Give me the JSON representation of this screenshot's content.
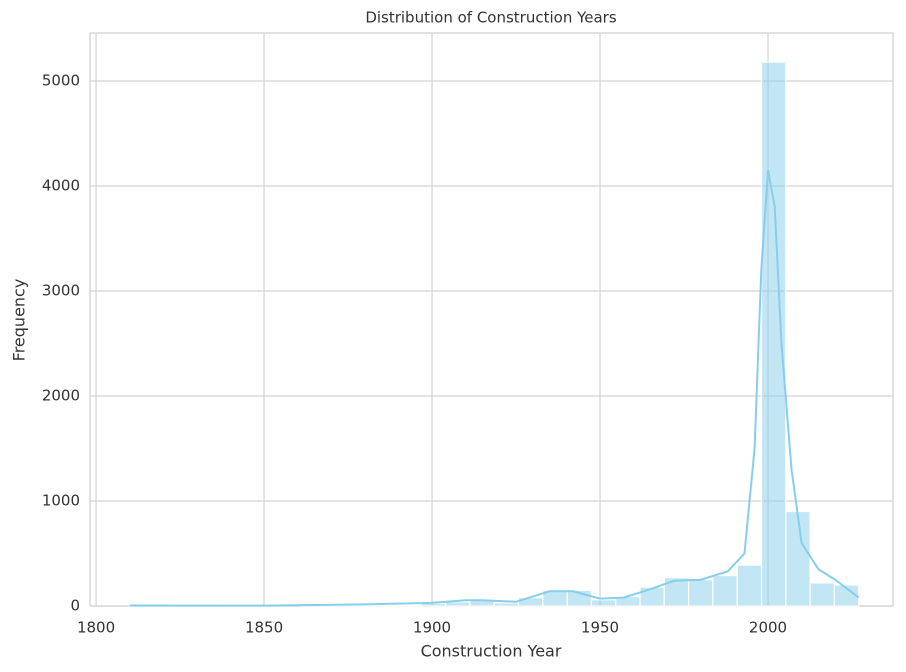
{
  "chart_data": {
    "type": "histogram",
    "title": "Distribution of Construction Years",
    "x_label": "Construction Year",
    "y_label": "Frequency",
    "bins": [
      1810,
      1817.23,
      1824.47,
      1831.7,
      1838.93,
      1846.17,
      1853.4,
      1860.63,
      1867.87,
      1875.1,
      1882.33,
      1889.57,
      1896.8,
      1904.03,
      1911.27,
      1918.5,
      1925.73,
      1932.97,
      1940.2,
      1947.43,
      1954.67,
      1961.9,
      1969.13,
      1976.37,
      1983.6,
      1990.83,
      1998.07,
      2005.3,
      2012.53,
      2019.77,
      2027
    ],
    "values": [
      3,
      0,
      0,
      0,
      0,
      2,
      0,
      2,
      5,
      10,
      8,
      10,
      25,
      40,
      55,
      30,
      80,
      150,
      150,
      60,
      90,
      180,
      270,
      250,
      290,
      390,
      5180,
      900,
      220,
      200
    ],
    "color": "#87ceeb",
    "kde": {
      "x": [
        1810,
        1850,
        1880,
        1900,
        1910,
        1915,
        1925,
        1935,
        1942,
        1950,
        1957,
        1965,
        1972,
        1980,
        1988,
        1993,
        1996,
        1998,
        2000,
        2002,
        2004,
        2007,
        2010,
        2015,
        2020,
        2027
      ],
      "values": [
        5,
        3,
        15,
        30,
        55,
        55,
        40,
        140,
        140,
        70,
        80,
        160,
        240,
        250,
        330,
        500,
        1500,
        3200,
        4150,
        3800,
        2500,
        1300,
        600,
        350,
        250,
        80
      ]
    },
    "xlim": [
      1798.2,
      2037.2
    ],
    "ylim": [
      0,
      5457
    ],
    "xticks": [
      1800,
      1850,
      1900,
      1950,
      2000
    ],
    "yticks": [
      0,
      1000,
      2000,
      3000,
      4000,
      5000
    ],
    "grid": true
  }
}
